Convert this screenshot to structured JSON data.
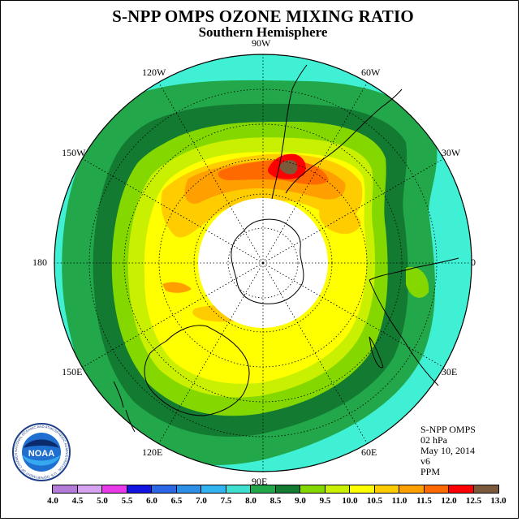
{
  "title": "S-NPP OMPS OZONE MIXING RATIO",
  "subtitle": "Southern Hemisphere",
  "longitude_labels": [
    {
      "text": "90W",
      "angle_deg": 90
    },
    {
      "text": "60W",
      "angle_deg": 60
    },
    {
      "text": "30W",
      "angle_deg": 30
    },
    {
      "text": "0",
      "angle_deg": 0
    },
    {
      "text": "30E",
      "angle_deg": -30
    },
    {
      "text": "60E",
      "angle_deg": -60
    },
    {
      "text": "90E",
      "angle_deg": -90
    },
    {
      "text": "120E",
      "angle_deg": -120
    },
    {
      "text": "150E",
      "angle_deg": -150
    },
    {
      "text": "180",
      "angle_deg": 180
    },
    {
      "text": "150W",
      "angle_deg": 150
    },
    {
      "text": "120W",
      "angle_deg": 120
    }
  ],
  "info": {
    "instrument": "S-NPP OMPS",
    "level": "02 hPa",
    "date": "May 10, 2014",
    "version": "v6",
    "units": "PPM"
  },
  "logo": {
    "text": "NOAA",
    "ring_text": "NATIONAL OCEANIC AND ATMOSPHERIC ADMINISTRATION · U.S. DEPARTMENT OF COMMERCE"
  },
  "legend": {
    "ticks": [
      "4.0",
      "4.5",
      "5.0",
      "5.5",
      "6.0",
      "6.5",
      "7.0",
      "7.5",
      "8.0",
      "8.5",
      "9.0",
      "9.5",
      "10.0",
      "10.5",
      "11.0",
      "11.5",
      "12.0",
      "12.5",
      "13.0"
    ],
    "colors": [
      "#b57bd8",
      "#d6a3f0",
      "#e83ae8",
      "#1414e0",
      "#2b66e6",
      "#2c8fe8",
      "#33b3f0",
      "#40e0d0",
      "#22a84a",
      "#137a32",
      "#84d800",
      "#c8f000",
      "#ffff00",
      "#ffcc00",
      "#ffa000",
      "#ff6a00",
      "#ff0000",
      "#7a5a3a"
    ]
  },
  "map_colors": {
    "background_ring": "#40f0d4",
    "c80": "#22a84a",
    "c85": "#137a32",
    "c90": "#84d800",
    "c95": "#c8f000",
    "c100": "#ffff00",
    "c105": "#ffcc00",
    "c110": "#ffa000",
    "c115": "#ff6a00",
    "c120": "#ff0000",
    "c125": "#7a5a3a",
    "hole": "#ffffff"
  }
}
